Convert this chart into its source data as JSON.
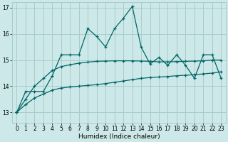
{
  "xlabel": "Humidex (Indice chaleur)",
  "background_color": "#cce8e8",
  "grid_color": "#aacccc",
  "line_color": "#006666",
  "xlim": [
    -0.5,
    23.5
  ],
  "ylim": [
    12.6,
    17.2
  ],
  "yticks": [
    13,
    14,
    15,
    16,
    17
  ],
  "xticks": [
    0,
    1,
    2,
    3,
    4,
    5,
    6,
    7,
    8,
    9,
    10,
    11,
    12,
    13,
    14,
    15,
    16,
    17,
    18,
    19,
    20,
    21,
    22,
    23
  ],
  "series1_y": [
    13.0,
    13.8,
    13.8,
    13.8,
    14.4,
    15.2,
    15.2,
    15.2,
    16.2,
    15.9,
    15.5,
    16.2,
    16.6,
    17.05,
    15.5,
    14.85,
    15.1,
    14.8,
    15.2,
    14.8,
    14.3,
    15.2,
    15.2,
    14.3
  ],
  "series2_y": [
    13.0,
    13.5,
    14.0,
    14.3,
    14.6,
    14.75,
    14.82,
    14.88,
    14.92,
    14.95,
    14.96,
    14.97,
    14.97,
    14.97,
    14.96,
    14.95,
    14.93,
    14.93,
    14.94,
    14.95,
    14.96,
    14.97,
    15.0,
    15.0
  ],
  "series3_y": [
    13.0,
    13.3,
    13.55,
    13.7,
    13.85,
    13.93,
    13.97,
    14.0,
    14.03,
    14.06,
    14.1,
    14.15,
    14.2,
    14.25,
    14.3,
    14.33,
    14.35,
    14.37,
    14.4,
    14.42,
    14.44,
    14.47,
    14.5,
    14.55
  ]
}
